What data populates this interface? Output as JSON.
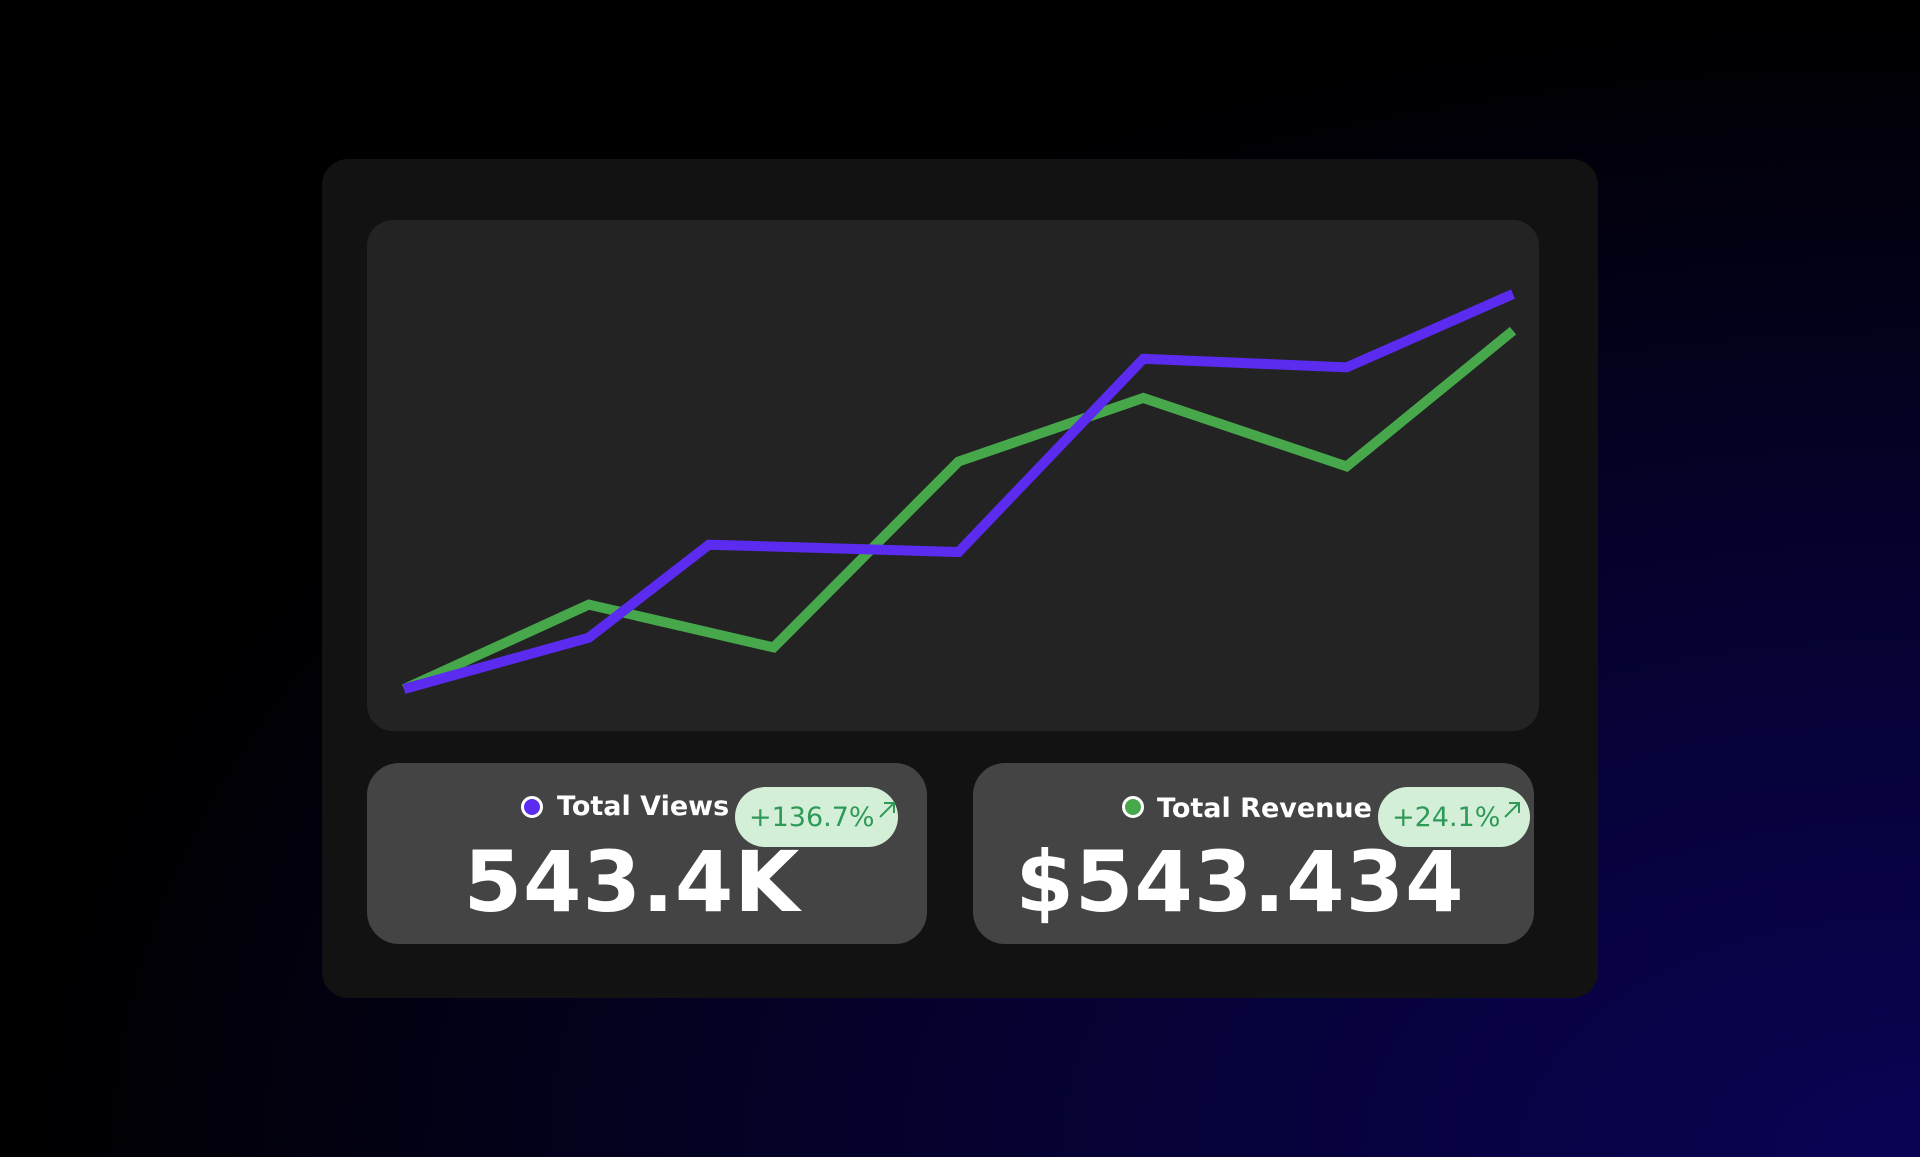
{
  "chart_data": {
    "type": "line",
    "series": [
      {
        "color": "#5b2bf0",
        "x": [
          0,
          1,
          1.65,
          3,
          4,
          5.1,
          6
        ],
        "values": [
          0,
          42,
          118,
          112,
          270,
          263,
          323
        ]
      },
      {
        "color": "#46a84a",
        "x": [
          0,
          1,
          2,
          3,
          4,
          5.1,
          6
        ],
        "values": [
          0,
          69,
          34,
          186,
          238,
          182,
          293
        ]
      }
    ]
  },
  "cards": [
    {
      "label": "Total Views",
      "change": "+136.7%",
      "value": "543.4K"
    },
    {
      "label": "Total Revenue",
      "change": "+24.1%",
      "value": "$543.434"
    }
  ]
}
